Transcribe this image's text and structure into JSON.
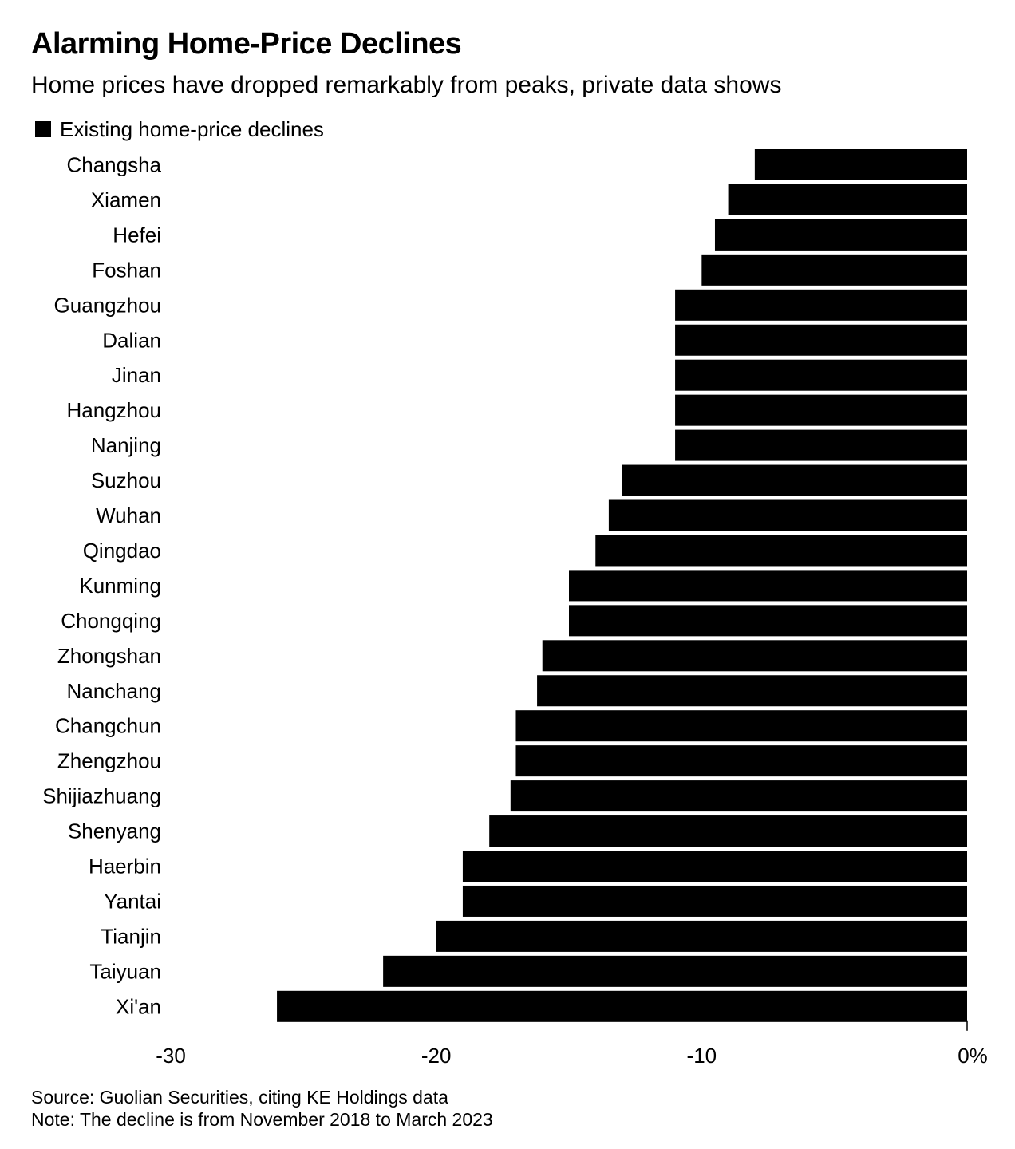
{
  "title": "Alarming Home-Price Declines",
  "subtitle": "Home prices have dropped remarkably from peaks, private data shows",
  "colors": {
    "bar": "#000000",
    "text": "#000000",
    "background": "#ffffff"
  },
  "chart_data": {
    "type": "bar",
    "orientation": "horizontal",
    "title": "Alarming Home-Price Declines",
    "subtitle": "Home prices have dropped remarkably from peaks, private data shows",
    "legend": [
      "Existing home-price declines"
    ],
    "legend_position": "top-left",
    "categories": [
      "Changsha",
      "Xiamen",
      "Hefei",
      "Foshan",
      "Guangzhou",
      "Dalian",
      "Jinan",
      "Hangzhou",
      "Nanjing",
      "Suzhou",
      "Wuhan",
      "Qingdao",
      "Kunming",
      "Chongqing",
      "Zhongshan",
      "Nanchang",
      "Changchun",
      "Zhengzhou",
      "Shijiazhuang",
      "Shenyang",
      "Haerbin",
      "Yantai",
      "Tianjin",
      "Taiyuan",
      "Xi'an"
    ],
    "series": [
      {
        "name": "Existing home-price declines",
        "values": [
          -8.0,
          -9.0,
          -9.5,
          -10.0,
          -11.0,
          -11.0,
          -11.0,
          -11.0,
          -11.0,
          -13.0,
          -13.5,
          -14.0,
          -15.0,
          -15.0,
          -16.0,
          -16.2,
          -17.0,
          -17.0,
          -17.2,
          -18.0,
          -19.0,
          -19.0,
          -20.0,
          -22.0,
          -26.0
        ]
      }
    ],
    "xlim": [
      -30,
      0
    ],
    "xticks": [
      -30,
      -20,
      -10,
      0
    ],
    "xtick_labels": [
      "-30",
      "-20",
      "-10",
      "0%"
    ],
    "grid": false,
    "source": "Source: Guolian Securities, citing KE Holdings data",
    "note": "Note: The decline is from November 2018 to March 2023"
  }
}
